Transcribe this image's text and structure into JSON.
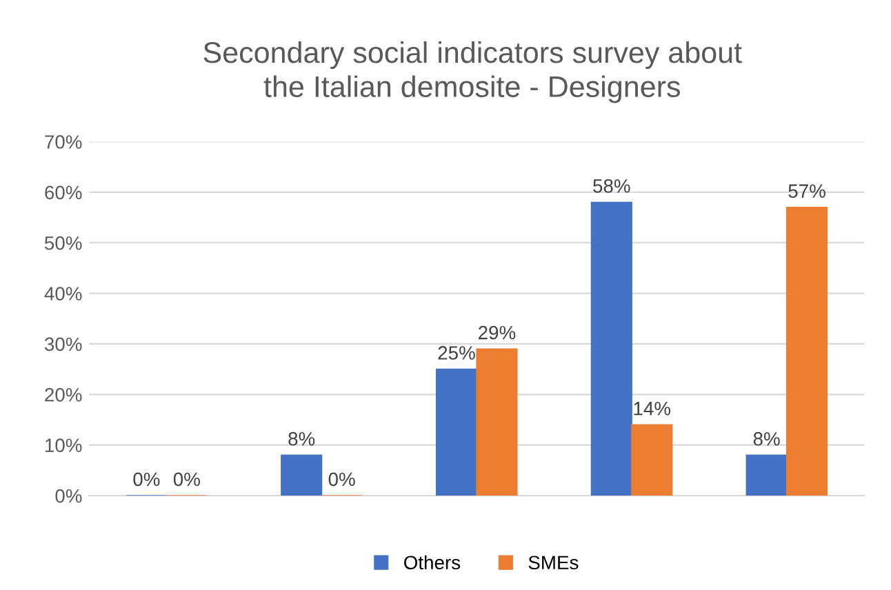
{
  "chart_data": {
    "type": "bar",
    "title": "Secondary social indicators survey about\nthe Italian demosite - Designers",
    "categories": [
      null,
      null,
      null,
      null,
      null
    ],
    "series": [
      {
        "name": "Others",
        "color": "#4472c4",
        "values": [
          0,
          8,
          25,
          58,
          8
        ],
        "value_labels": [
          "0%",
          "8%",
          "25%",
          "58%",
          "8%"
        ]
      },
      {
        "name": "SMEs",
        "color": "#ed7d31",
        "values": [
          0,
          0,
          29,
          14,
          57
        ],
        "value_labels": [
          "0%",
          "0%",
          "29%",
          "14%",
          "57%"
        ]
      }
    ],
    "ylim": [
      0,
      70
    ],
    "yticks": [
      {
        "value": 0,
        "label": "0%"
      },
      {
        "value": 10,
        "label": "10%"
      },
      {
        "value": 20,
        "label": "20%"
      },
      {
        "value": 30,
        "label": "30%"
      },
      {
        "value": 40,
        "label": "40%"
      },
      {
        "value": 50,
        "label": "50%"
      },
      {
        "value": 60,
        "label": "60%"
      },
      {
        "value": 70,
        "label": "70%"
      }
    ],
    "grid": "y",
    "legend": "bottom"
  }
}
